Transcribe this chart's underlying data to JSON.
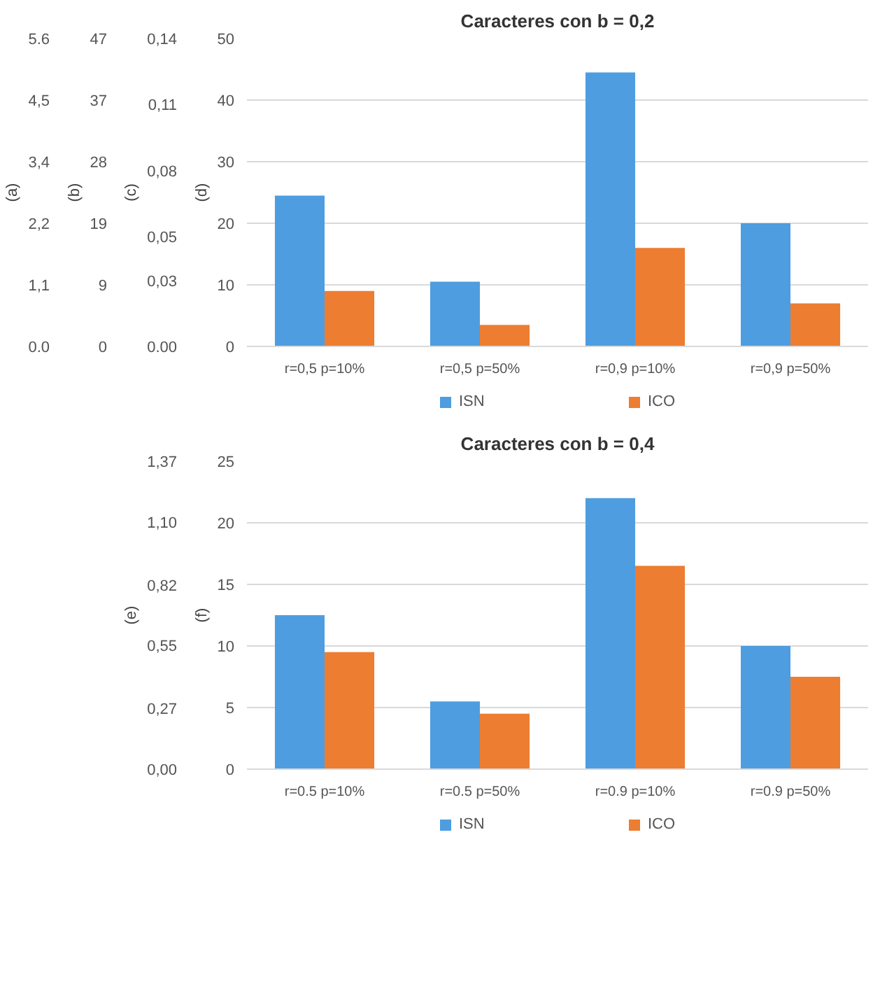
{
  "chart_data": [
    {
      "type": "bar",
      "title": "Caracteres con b = 0,2",
      "categories": [
        "r=0,5 p=10%",
        "r=0,5 p=50%",
        "r=0,9 p=10%",
        "r=0,9 p=50%"
      ],
      "series": [
        {
          "name": "ISN",
          "color": "#4e9de0",
          "values": [
            24.5,
            10.5,
            44.5,
            20
          ]
        },
        {
          "name": "ICO",
          "color": "#ed7d31",
          "values": [
            9,
            3.5,
            16,
            7
          ]
        }
      ],
      "ylabel": "(d)",
      "ylim": [
        0,
        50
      ],
      "yticks": [
        0,
        10,
        20,
        30,
        40,
        50
      ],
      "y2label": "(c)",
      "y2lim": [
        0,
        0.14
      ],
      "y2ticks": [
        {
          "value": 0,
          "label": "0.00"
        },
        {
          "value": 0.03,
          "label": "0,03"
        },
        {
          "value": 0.05,
          "label": "0,05"
        },
        {
          "value": 0.08,
          "label": "0,08"
        },
        {
          "value": 0.11,
          "label": "0,11"
        },
        {
          "value": 0.14,
          "label": "0,14"
        }
      ],
      "annotations": [
        "(b)",
        "47",
        "37",
        "28",
        "19",
        "9",
        "0",
        "(a)",
        "5.6",
        "4,5",
        "3,4",
        "2,2",
        "1,1",
        "0.0"
      ],
      "grid": "y",
      "legend": "bottom"
    },
    {
      "type": "bar",
      "title": "Caracteres con b = 0,4",
      "categories": [
        "r=0.5 p=10%",
        "r=0.5 p=50%",
        "r=0.9 p=10%",
        "r=0.9 p=50%"
      ],
      "series": [
        {
          "name": "ISN",
          "color": "#4e9de0",
          "values": [
            12.5,
            5.5,
            22,
            10
          ]
        },
        {
          "name": "ICO",
          "color": "#ed7d31",
          "values": [
            9.5,
            4.5,
            16.5,
            7.5
          ]
        }
      ],
      "ylabel": "(f)",
      "ylim": [
        0,
        25
      ],
      "yticks": [
        0,
        5,
        10,
        15,
        20,
        25
      ],
      "y2label": "(e)",
      "y2lim": [
        0,
        1.37
      ],
      "y2ticks": [
        {
          "value": 0,
          "label": "0,00"
        },
        {
          "value": 0.27,
          "label": "0,27"
        },
        {
          "value": 0.55,
          "label": "0,55"
        },
        {
          "value": 0.82,
          "label": "0,82"
        },
        {
          "value": 1.1,
          "label": "1,10"
        },
        {
          "value": 1.37,
          "label": "1,37"
        }
      ],
      "grid": "y",
      "legend": "bottom"
    }
  ]
}
